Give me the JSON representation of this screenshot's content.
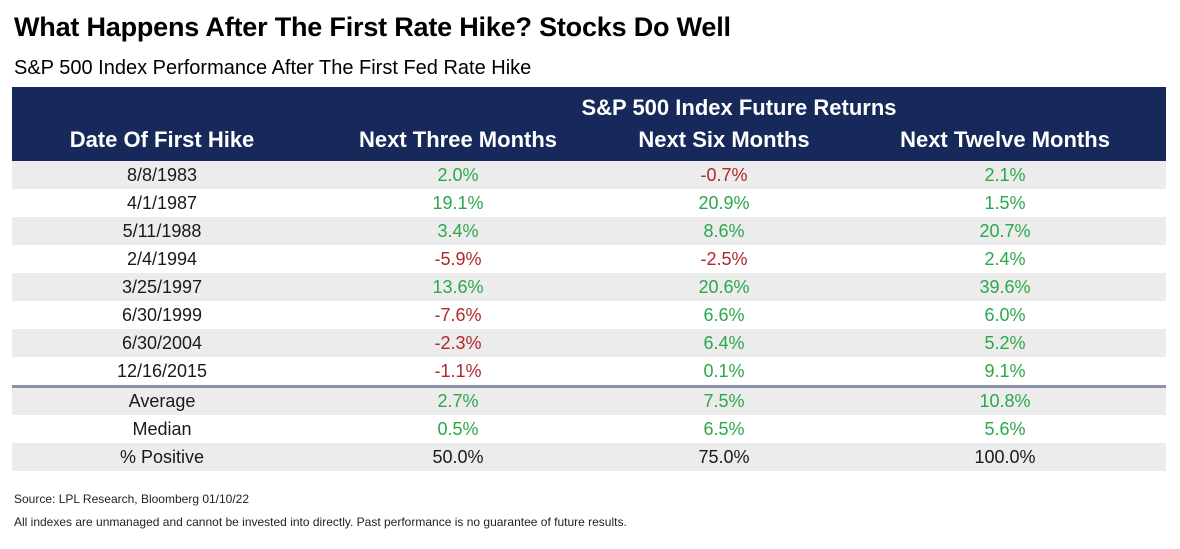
{
  "chart_data": {
    "type": "table",
    "title": "What Happens After The First Rate Hike? Stocks Do Well",
    "subtitle": "S&P 500 Index Performance After The First Fed Rate Hike",
    "group_header": "S&P 500 Index Future Returns",
    "columns": [
      "Date Of First Hike",
      "Next Three Months",
      "Next Six Months",
      "Next Twelve Months"
    ],
    "rows": [
      {
        "label": "8/8/1983",
        "values": [
          "2.0%",
          "-0.7%",
          "2.1%"
        ],
        "signs": [
          "pos",
          "neg",
          "pos"
        ]
      },
      {
        "label": "4/1/1987",
        "values": [
          "19.1%",
          "20.9%",
          "1.5%"
        ],
        "signs": [
          "pos",
          "pos",
          "pos"
        ]
      },
      {
        "label": "5/11/1988",
        "values": [
          "3.4%",
          "8.6%",
          "20.7%"
        ],
        "signs": [
          "pos",
          "pos",
          "pos"
        ]
      },
      {
        "label": "2/4/1994",
        "values": [
          "-5.9%",
          "-2.5%",
          "2.4%"
        ],
        "signs": [
          "neg",
          "neg",
          "pos"
        ]
      },
      {
        "label": "3/25/1997",
        "values": [
          "13.6%",
          "20.6%",
          "39.6%"
        ],
        "signs": [
          "pos",
          "pos",
          "pos"
        ]
      },
      {
        "label": "6/30/1999",
        "values": [
          "-7.6%",
          "6.6%",
          "6.0%"
        ],
        "signs": [
          "neg",
          "pos",
          "pos"
        ]
      },
      {
        "label": "6/30/2004",
        "values": [
          "-2.3%",
          "6.4%",
          "5.2%"
        ],
        "signs": [
          "neg",
          "pos",
          "pos"
        ]
      },
      {
        "label": "12/16/2015",
        "values": [
          "-1.1%",
          "0.1%",
          "9.1%"
        ],
        "signs": [
          "neg",
          "pos",
          "pos"
        ]
      }
    ],
    "summary": [
      {
        "label": "Average",
        "values": [
          "2.7%",
          "7.5%",
          "10.8%"
        ],
        "signs": [
          "pos",
          "pos",
          "pos"
        ]
      },
      {
        "label": "Median",
        "values": [
          "0.5%",
          "6.5%",
          "5.6%"
        ],
        "signs": [
          "pos",
          "pos",
          "pos"
        ]
      },
      {
        "label": "% Positive",
        "values": [
          "50.0%",
          "75.0%",
          "100.0%"
        ],
        "signs": [
          "neutral",
          "neutral",
          "neutral"
        ]
      }
    ],
    "colors": {
      "header_bg": "#17295a",
      "positive": "#2aa84a",
      "negative": "#b2282b",
      "row_shade": "#ececec"
    }
  },
  "footer": {
    "source": "Source: LPL Research, Bloomberg 01/10/22",
    "disclaimer": "All indexes are unmanaged and cannot be invested into directly. Past performance is no guarantee of future results."
  }
}
